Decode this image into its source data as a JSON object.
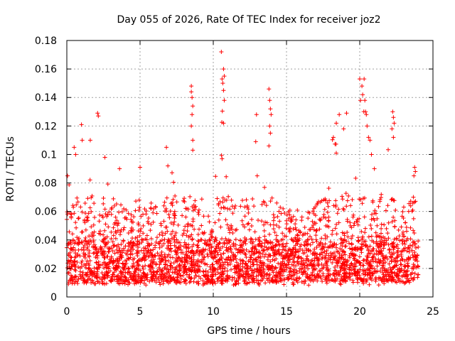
{
  "chart_data": {
    "type": "scatter",
    "title": "Day 055 of 2026, Rate Of TEC Index for receiver joz2",
    "xlabel": "GPS time / hours",
    "ylabel": "ROTI / TECUs",
    "xlim": [
      0,
      25
    ],
    "ylim": [
      0,
      0.18
    ],
    "xticks": [
      "0",
      "5",
      "10",
      "15",
      "20",
      "25"
    ],
    "yticks": [
      "0",
      "0.02",
      "0.04",
      "0.06",
      "0.08",
      "0.1",
      "0.12",
      "0.14",
      "0.16",
      "0.18"
    ],
    "grid": true,
    "marker": "+",
    "color": "#ff0000",
    "data_coverage_hours": [
      0,
      24
    ],
    "typical_range": [
      0.01,
      0.04
    ],
    "activity_profile": [
      {
        "x": 0.0,
        "max": 0.085
      },
      {
        "x": 0.5,
        "max": 0.105
      },
      {
        "x": 1.0,
        "max": 0.121
      },
      {
        "x": 1.5,
        "max": 0.11
      },
      {
        "x": 2.0,
        "max": 0.13
      },
      {
        "x": 2.5,
        "max": 0.098
      },
      {
        "x": 3.0,
        "max": 0.075
      },
      {
        "x": 3.5,
        "max": 0.09
      },
      {
        "x": 4.0,
        "max": 0.068
      },
      {
        "x": 4.5,
        "max": 0.055
      },
      {
        "x": 5.0,
        "max": 0.092
      },
      {
        "x": 5.5,
        "max": 0.065
      },
      {
        "x": 6.0,
        "max": 0.085
      },
      {
        "x": 6.5,
        "max": 0.07
      },
      {
        "x": 7.0,
        "max": 0.105
      },
      {
        "x": 7.5,
        "max": 0.07
      },
      {
        "x": 8.0,
        "max": 0.082
      },
      {
        "x": 8.5,
        "max": 0.148
      },
      {
        "x": 9.0,
        "max": 0.08
      },
      {
        "x": 9.5,
        "max": 0.06
      },
      {
        "x": 10.0,
        "max": 0.05
      },
      {
        "x": 10.5,
        "max": 0.172
      },
      {
        "x": 11.0,
        "max": 0.08
      },
      {
        "x": 11.5,
        "max": 0.065
      },
      {
        "x": 12.0,
        "max": 0.07
      },
      {
        "x": 12.5,
        "max": 0.075
      },
      {
        "x": 13.0,
        "max": 0.128
      },
      {
        "x": 13.5,
        "max": 0.09
      },
      {
        "x": 13.8,
        "max": 0.146
      },
      {
        "x": 14.5,
        "max": 0.07
      },
      {
        "x": 15.0,
        "max": 0.06
      },
      {
        "x": 15.5,
        "max": 0.065
      },
      {
        "x": 16.0,
        "max": 0.06
      },
      {
        "x": 16.5,
        "max": 0.06
      },
      {
        "x": 17.0,
        "max": 0.065
      },
      {
        "x": 17.5,
        "max": 0.07
      },
      {
        "x": 18.0,
        "max": 0.105
      },
      {
        "x": 18.5,
        "max": 0.13
      },
      {
        "x": 19.0,
        "max": 0.13
      },
      {
        "x": 19.5,
        "max": 0.1
      },
      {
        "x": 20.0,
        "max": 0.153
      },
      {
        "x": 20.5,
        "max": 0.15
      },
      {
        "x": 21.0,
        "max": 0.1
      },
      {
        "x": 21.5,
        "max": 0.09
      },
      {
        "x": 22.0,
        "max": 0.11
      },
      {
        "x": 22.3,
        "max": 0.13
      },
      {
        "x": 22.8,
        "max": 0.07
      },
      {
        "x": 23.3,
        "max": 0.075
      },
      {
        "x": 23.7,
        "max": 0.092
      },
      {
        "x": 24.0,
        "max": 0.08
      }
    ],
    "notable_points": [
      {
        "x": 0.05,
        "y": 0.085
      },
      {
        "x": 0.5,
        "y": 0.105
      },
      {
        "x": 0.6,
        "y": 0.1
      },
      {
        "x": 1.0,
        "y": 0.121
      },
      {
        "x": 1.05,
        "y": 0.11
      },
      {
        "x": 1.6,
        "y": 0.11
      },
      {
        "x": 2.1,
        "y": 0.129
      },
      {
        "x": 2.15,
        "y": 0.127
      },
      {
        "x": 2.6,
        "y": 0.098
      },
      {
        "x": 3.6,
        "y": 0.09
      },
      {
        "x": 5.0,
        "y": 0.091
      },
      {
        "x": 6.8,
        "y": 0.105
      },
      {
        "x": 6.9,
        "y": 0.092
      },
      {
        "x": 8.5,
        "y": 0.148
      },
      {
        "x": 8.5,
        "y": 0.144
      },
      {
        "x": 8.55,
        "y": 0.14
      },
      {
        "x": 8.6,
        "y": 0.134
      },
      {
        "x": 8.55,
        "y": 0.128
      },
      {
        "x": 8.5,
        "y": 0.12
      },
      {
        "x": 8.6,
        "y": 0.11
      },
      {
        "x": 8.6,
        "y": 0.103
      },
      {
        "x": 10.55,
        "y": 0.172
      },
      {
        "x": 10.7,
        "y": 0.16
      },
      {
        "x": 10.75,
        "y": 0.155
      },
      {
        "x": 10.6,
        "y": 0.153
      },
      {
        "x": 10.65,
        "y": 0.15
      },
      {
        "x": 10.7,
        "y": 0.145
      },
      {
        "x": 10.75,
        "y": 0.138
      },
      {
        "x": 10.7,
        "y": 0.122
      },
      {
        "x": 10.6,
        "y": 0.097
      },
      {
        "x": 12.95,
        "y": 0.128
      },
      {
        "x": 12.9,
        "y": 0.109
      },
      {
        "x": 13.0,
        "y": 0.085
      },
      {
        "x": 13.8,
        "y": 0.146
      },
      {
        "x": 13.85,
        "y": 0.138
      },
      {
        "x": 13.9,
        "y": 0.132
      },
      {
        "x": 13.95,
        "y": 0.128
      },
      {
        "x": 13.85,
        "y": 0.12
      },
      {
        "x": 13.9,
        "y": 0.115
      },
      {
        "x": 13.8,
        "y": 0.106
      },
      {
        "x": 18.6,
        "y": 0.128
      },
      {
        "x": 18.4,
        "y": 0.122
      },
      {
        "x": 18.2,
        "y": 0.112
      },
      {
        "x": 19.1,
        "y": 0.129
      },
      {
        "x": 18.9,
        "y": 0.118
      },
      {
        "x": 20.0,
        "y": 0.153
      },
      {
        "x": 20.3,
        "y": 0.153
      },
      {
        "x": 20.15,
        "y": 0.148
      },
      {
        "x": 20.2,
        "y": 0.142
      },
      {
        "x": 20.05,
        "y": 0.138
      },
      {
        "x": 20.35,
        "y": 0.138
      },
      {
        "x": 20.4,
        "y": 0.13
      },
      {
        "x": 20.45,
        "y": 0.128
      },
      {
        "x": 20.5,
        "y": 0.12
      },
      {
        "x": 20.6,
        "y": 0.112
      },
      {
        "x": 20.7,
        "y": 0.11
      },
      {
        "x": 20.8,
        "y": 0.1
      },
      {
        "x": 21.0,
        "y": 0.09
      },
      {
        "x": 22.25,
        "y": 0.13
      },
      {
        "x": 22.3,
        "y": 0.126
      },
      {
        "x": 22.35,
        "y": 0.122
      },
      {
        "x": 22.2,
        "y": 0.118
      },
      {
        "x": 22.3,
        "y": 0.112
      },
      {
        "x": 23.75,
        "y": 0.091
      },
      {
        "x": 23.8,
        "y": 0.088
      },
      {
        "x": 23.7,
        "y": 0.085
      }
    ]
  }
}
